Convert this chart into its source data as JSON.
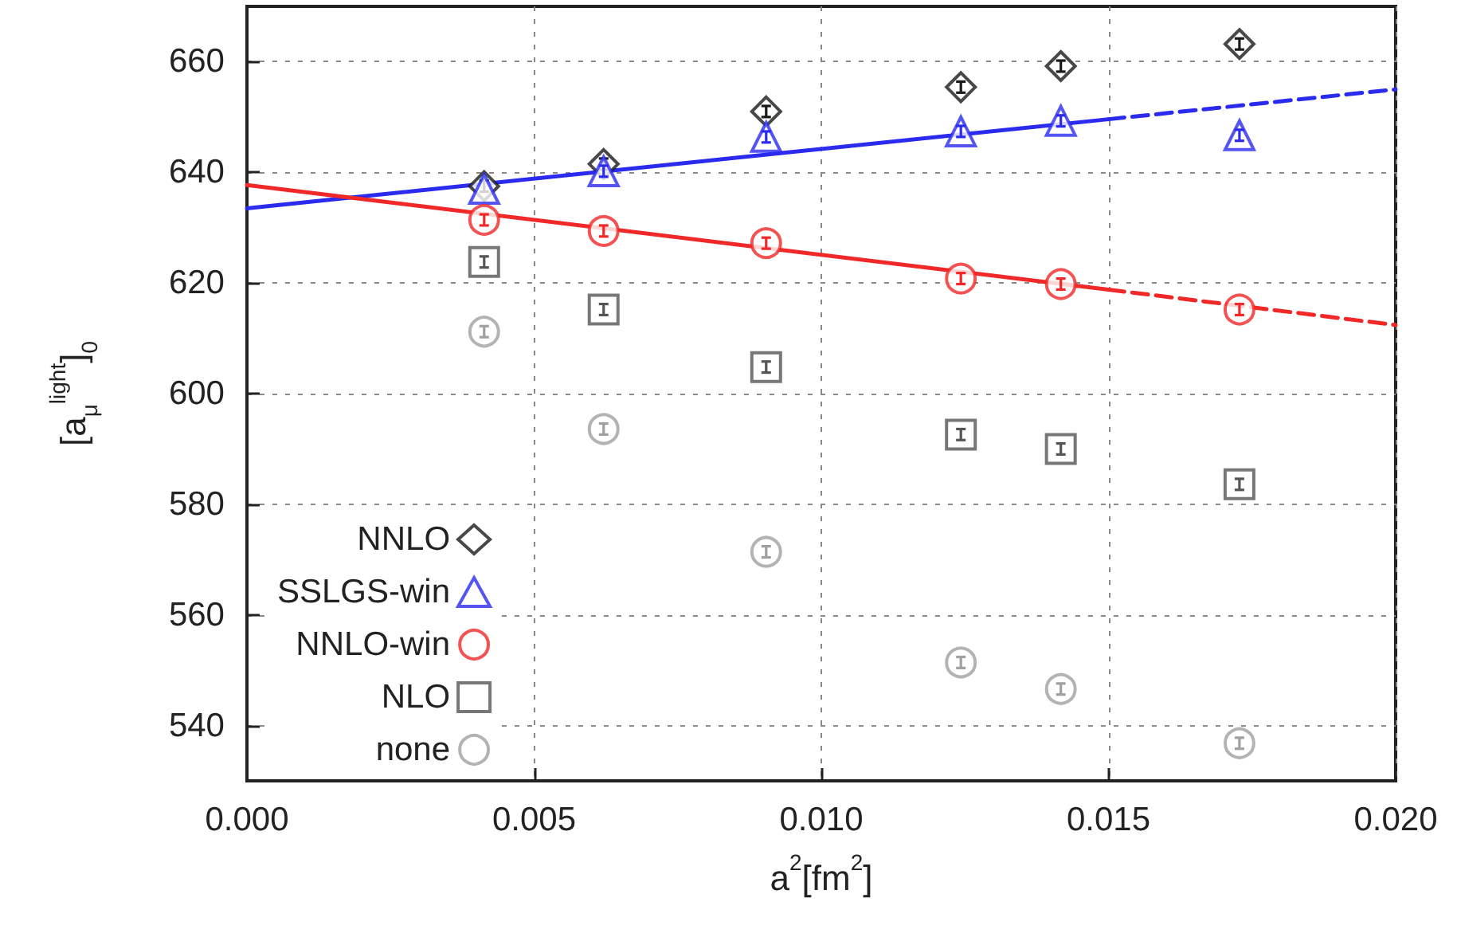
{
  "chart_data": {
    "type": "scatter",
    "xlabel": "a$^{2}$[fm$^{2}$]",
    "ylabel": "[a$_{μ}$$^{light}$]$_{0}$",
    "x": [
      0.00413,
      0.00621,
      0.00904,
      0.01243,
      0.01417,
      0.01728
    ],
    "series": [
      {
        "name": "NNLO",
        "color": "#1a1a1a",
        "marker": "diamond",
        "values": [
          637.5,
          641.5,
          651,
          655.4,
          659.2,
          663.2
        ],
        "errors": [
          1,
          1,
          1,
          1,
          1,
          1
        ]
      },
      {
        "name": "SSLGS-win",
        "color": "#2b2bf0",
        "marker": "triangle",
        "values": [
          637,
          640.2,
          646.4,
          647.4,
          649.3,
          646.7
        ],
        "errors": [
          null,
          1,
          1,
          1,
          1,
          1
        ]
      },
      {
        "name": "NNLO-win",
        "color": "#f02828",
        "marker": "circle",
        "values": [
          631.4,
          629.4,
          627.2,
          620.8,
          619.8,
          615.2
        ],
        "errors": [
          1,
          1,
          1,
          1,
          1,
          1
        ]
      },
      {
        "name": "NLO",
        "color": "#555555",
        "marker": "square",
        "values": [
          623.8,
          615.2,
          604.8,
          592.6,
          590,
          583.6
        ],
        "errors": [
          1,
          1,
          1,
          1,
          1,
          1
        ]
      },
      {
        "name": "none",
        "color": "#a0a0a0",
        "marker": "circle",
        "values": [
          611.2,
          593.6,
          571.4,
          551.4,
          546.6,
          536.8
        ],
        "errors": [
          1,
          1,
          1,
          1,
          1,
          1
        ]
      },
      {
        "type": "line",
        "color": "#2b2bf0",
        "line_style": "solid",
        "x": [
          0,
          0.015
        ],
        "values": [
          633.5,
          649.6
        ]
      },
      {
        "type": "line",
        "color": "#2b2bf0",
        "line_style": "dashed",
        "x": [
          0.015,
          0.02
        ],
        "values": [
          649.6,
          655
        ]
      },
      {
        "type": "line",
        "color": "#f02828",
        "line_style": "solid",
        "x": [
          0,
          0.015
        ],
        "values": [
          637.7,
          618.8
        ]
      },
      {
        "type": "line",
        "color": "#f02828",
        "line_style": "dashed",
        "x": [
          0.015,
          0.02
        ],
        "values": [
          618.8,
          612.4
        ]
      }
    ],
    "xlim": [
      0,
      0.02
    ],
    "xticks": [
      {
        "value": 0,
        "label": "0.000"
      },
      {
        "value": 0.005,
        "label": "0.005"
      },
      {
        "value": 0.01,
        "label": "0.010"
      },
      {
        "value": 0.015,
        "label": "0.015"
      },
      {
        "value": 0.02,
        "label": "0.020"
      }
    ],
    "ylim": [
      530,
      670
    ],
    "yticks": [
      540,
      560,
      580,
      600,
      620,
      640,
      660
    ],
    "grid": true,
    "legend": "bottom left"
  }
}
